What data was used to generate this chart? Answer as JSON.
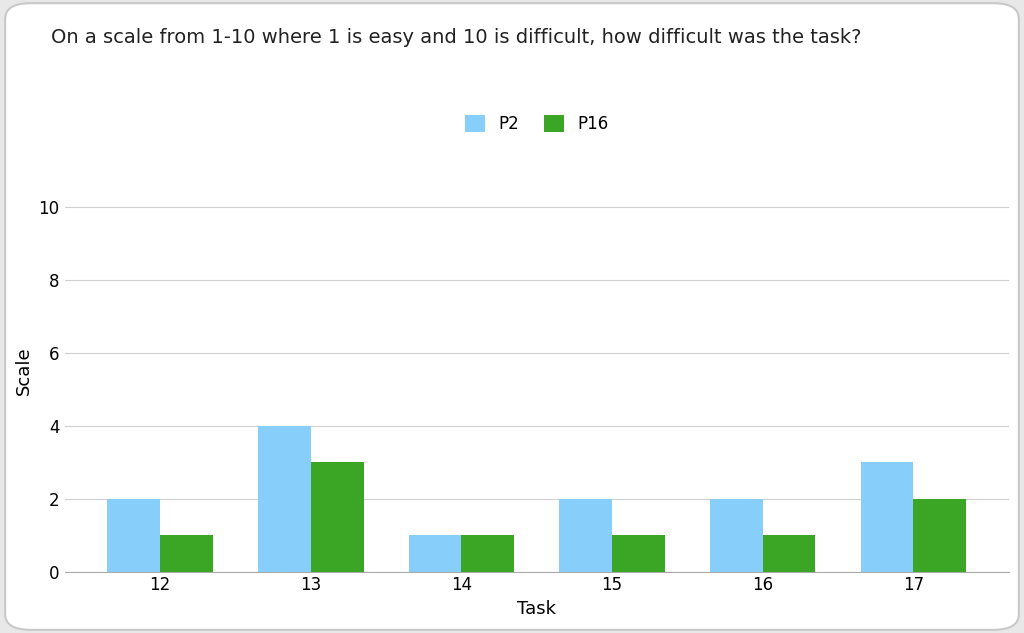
{
  "title": "On a scale from 1-10 where 1 is easy and 10 is difficult, how difficult was the task?",
  "xlabel": "Task",
  "ylabel": "Scale",
  "categories": [
    12,
    13,
    14,
    15,
    16,
    17
  ],
  "series": {
    "P2": [
      2,
      4,
      1,
      2,
      2,
      3
    ],
    "P16": [
      1,
      3,
      1,
      1,
      1,
      2
    ]
  },
  "colors": {
    "P2": "#87CEFA",
    "P16": "#3BA526"
  },
  "ylim": [
    0,
    11
  ],
  "yticks": [
    0,
    2,
    4,
    6,
    8,
    10
  ],
  "bar_width": 0.35,
  "background_color": "#ffffff",
  "figure_facecolor": "#e8e8e8",
  "legend_loc": "upper center",
  "title_fontsize": 14,
  "axis_label_fontsize": 13,
  "tick_fontsize": 12,
  "legend_fontsize": 12,
  "grid_color": "#d0d0d0",
  "border_color": "#c8c8c8"
}
